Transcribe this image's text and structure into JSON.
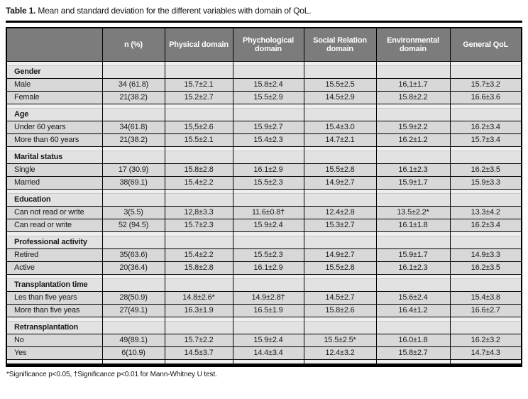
{
  "title": {
    "label": "Table 1.",
    "text": " Mean and standard deviation for the different variables with domain of QoL."
  },
  "table": {
    "columns": [
      "",
      "n (%)",
      "Physical domain",
      "Phychological domain",
      "Social Relation domain",
      "Environmental domain",
      "General QoL"
    ],
    "sections": [
      {
        "header": "Gender",
        "rows": [
          {
            "label": "Male",
            "cells": [
              "34 (61.8)",
              "15.7±2.1",
              "15.8±2.4",
              "15.5±2.5",
              "16,1±1.7",
              "15.7±3.2"
            ]
          },
          {
            "label": "Female",
            "cells": [
              "21(38.2)",
              "15.2±2.7",
              "15.5±2.9",
              "14.5±2.9",
              "15.8±2.2",
              "16.6±3.6"
            ]
          }
        ]
      },
      {
        "header": "Age",
        "rows": [
          {
            "label": "Under 60 years",
            "cells": [
              "34(61.8)",
              "15,5±2.6",
              "15.9±2.7",
              "15.4±3.0",
              "15.9±2.2",
              "16.2±3.4"
            ]
          },
          {
            "label": "More than 60 years",
            "cells": [
              "21(38.2)",
              "15.5±2.1",
              "15.4±2.3",
              "14.7±2.1",
              "16.2±1.2",
              "15.7±3.4"
            ]
          }
        ]
      },
      {
        "header": "Marital status",
        "rows": [
          {
            "label": "Single",
            "cells": [
              "17 (30.9)",
              "15.8±2.8",
              "16.1±2.9",
              "15.5±2.8",
              "16.1±2.3",
              "16.2±3.5"
            ]
          },
          {
            "label": "Married",
            "cells": [
              "38(69.1)",
              "15.4±2.2",
              "15.5±2.3",
              "14.9±2.7",
              "15.9±1.7",
              "15.9±3.3"
            ]
          }
        ]
      },
      {
        "header": "Education",
        "rows": [
          {
            "label": "Can not read or write",
            "cells": [
              "3(5.5)",
              "12,8±3.3",
              "11.6±0.8†",
              "12.4±2.8",
              "13.5±2.2*",
              "13.3±4.2"
            ]
          },
          {
            "label": "Can read or write",
            "cells": [
              "52 (94.5)",
              "15.7±2.3",
              "15.9±2.4",
              "15.3±2.7",
              "16.1±1.8",
              "16.2±3.4"
            ]
          }
        ]
      },
      {
        "header": "Professional activity",
        "rows": [
          {
            "label": "Retired",
            "cells": [
              "35(63.6)",
              "15.4±2.2",
              "15.5±2.3",
              "14.9±2.7",
              "15.9±1.7",
              "14.9±3.3"
            ]
          },
          {
            "label": "Active",
            "cells": [
              "20(36.4)",
              "15.8±2.8",
              "16.1±2.9",
              "15.5±2.8",
              "16.1±2.3",
              "16.2±3.5"
            ]
          }
        ]
      },
      {
        "header": "Transplantation time",
        "rows": [
          {
            "label": "Les than five years",
            "cells": [
              "28(50.9)",
              "14.8±2.6*",
              "14.9±2.8†",
              "14.5±2.7",
              "15.6±2.4",
              "15.4±3.8"
            ]
          },
          {
            "label": "More than five yeas",
            "cells": [
              "27(49.1)",
              "16.3±1.9",
              "16.5±1.9",
              "15.8±2.6",
              "16.4±1.2",
              "16.6±2.7"
            ]
          }
        ]
      },
      {
        "header": "Retransplantation",
        "rows": [
          {
            "label": "No",
            "cells": [
              "49(89.1)",
              "15.7±2.2",
              "15.9±2.4",
              "15.5±2.5*",
              "16.0±1.8",
              "16.2±3.2"
            ]
          },
          {
            "label": "Yes",
            "cells": [
              "6(10.9)",
              "14.5±3.7",
              "14.4±3.4",
              "12.4±3.2",
              "15.8±2.7",
              "14.7±4.3"
            ]
          }
        ]
      }
    ]
  },
  "footnote": "*Significance p<0.05, †Significance p<0.01 for Mann-Whitney U test.",
  "colors": {
    "header_bg": "#7c7c7c",
    "row_bg": "#d8d8d8",
    "section_bg": "#e2e2e2",
    "spacer_bg": "#efefef",
    "border": "#000000"
  }
}
